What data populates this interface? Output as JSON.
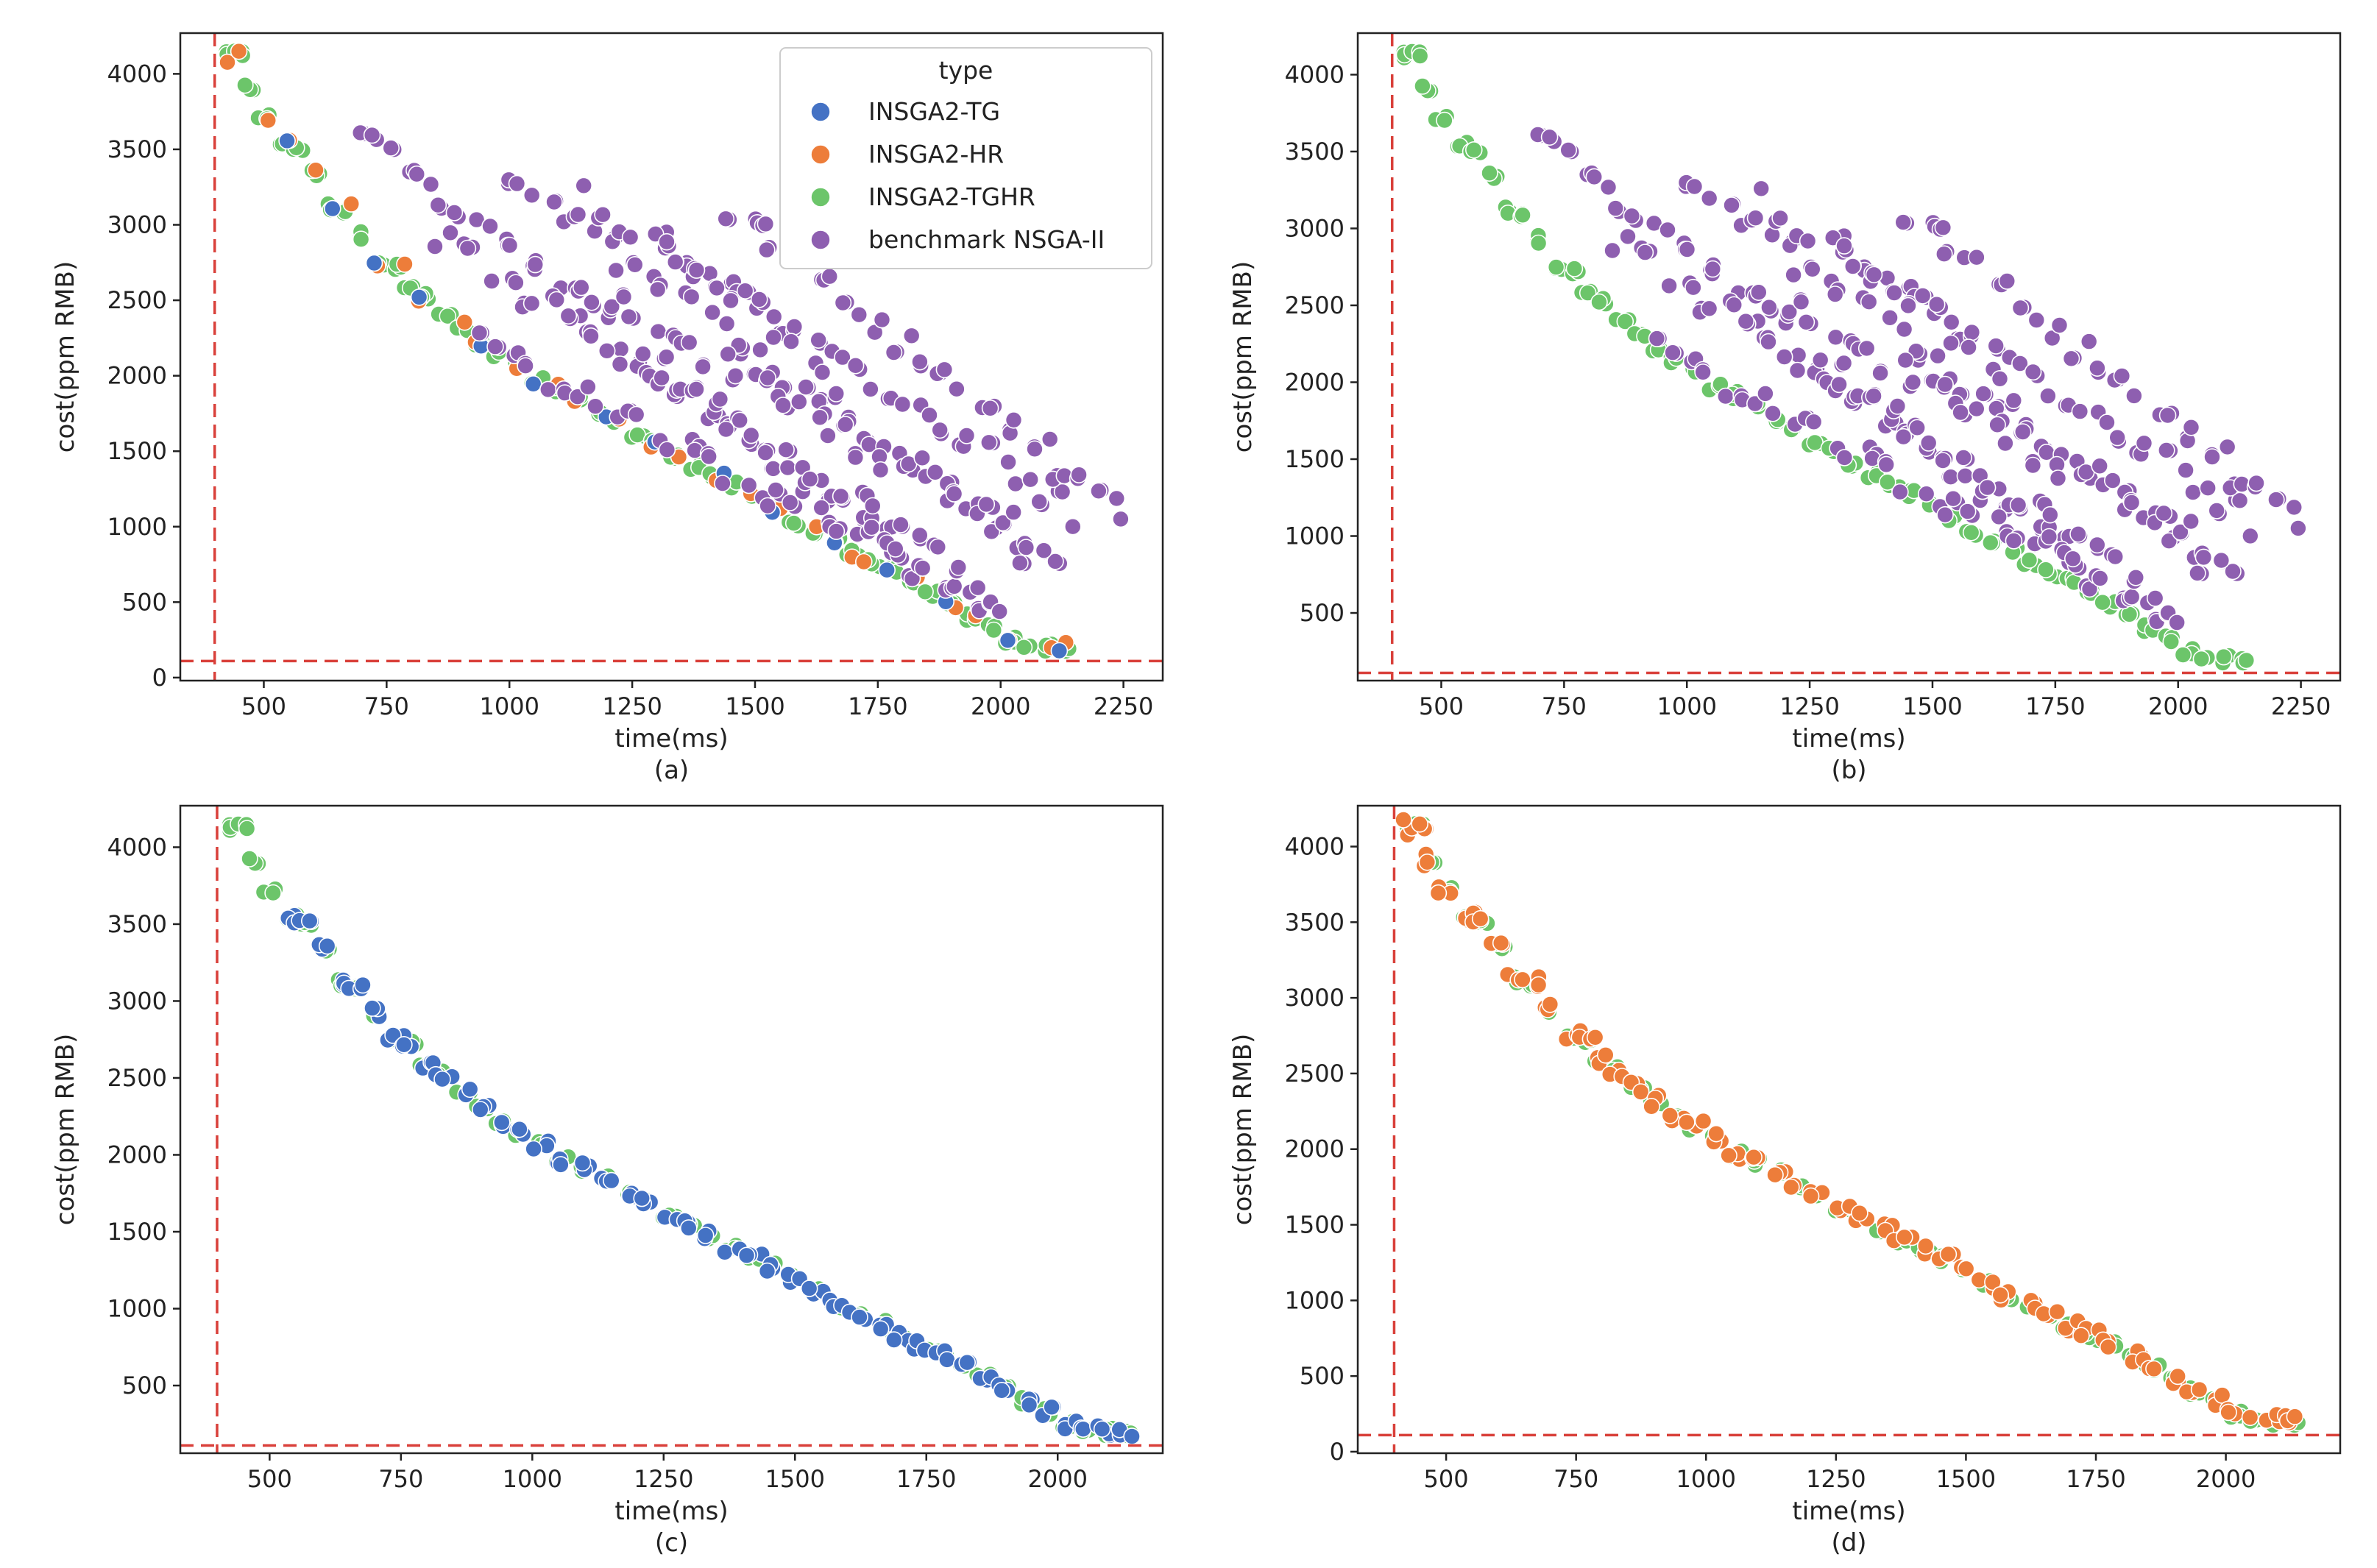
{
  "legend": {
    "title": "type",
    "items": [
      {
        "label": "INSGA2-TG",
        "color": "#4472c4"
      },
      {
        "label": "INSGA2-HR",
        "color": "#ed7d3a"
      },
      {
        "label": "INSGA2-TGHR",
        "color": "#6cc56a"
      },
      {
        "label": "benchmark NSGA-II",
        "color": "#8e5fb0"
      }
    ]
  },
  "chart_data": [
    {
      "id": "a",
      "type": "scatter",
      "caption": "(a)",
      "xlabel": "time(ms)",
      "ylabel": "cost(ppm RMB)",
      "xlim": [
        330,
        2330
      ],
      "ylim": [
        -20,
        4270
      ],
      "xticks": [
        500,
        750,
        1000,
        1250,
        1500,
        1750,
        2000,
        2250
      ],
      "yticks": [
        0,
        500,
        1000,
        1500,
        2000,
        2500,
        3000,
        3500,
        4000
      ],
      "reference_lines": {
        "x": 400,
        "y": 110
      },
      "show_legend": true,
      "series": [
        "INSGA2-TGHR",
        "INSGA2-HR",
        "INSGA2-TG",
        "benchmark NSGA-II"
      ]
    },
    {
      "id": "b",
      "type": "scatter",
      "caption": "(b)",
      "xlabel": "time(ms)",
      "ylabel": "cost(ppm RMB)",
      "xlim": [
        330,
        2330
      ],
      "ylim": [
        60,
        4270
      ],
      "xticks": [
        500,
        750,
        1000,
        1250,
        1500,
        1750,
        2000,
        2250
      ],
      "yticks": [
        500,
        1000,
        1500,
        2000,
        2500,
        3000,
        3500,
        4000
      ],
      "reference_lines": {
        "x": 400,
        "y": 110
      },
      "show_legend": false,
      "series": [
        "INSGA2-TGHR",
        "benchmark NSGA-II"
      ]
    },
    {
      "id": "c",
      "type": "scatter",
      "caption": "(c)",
      "xlabel": "time(ms)",
      "ylabel": "cost(ppm RMB)",
      "xlim": [
        330,
        2200
      ],
      "ylim": [
        60,
        4270
      ],
      "xticks": [
        500,
        750,
        1000,
        1250,
        1500,
        1750,
        2000
      ],
      "yticks": [
        500,
        1000,
        1500,
        2000,
        2500,
        3000,
        3500,
        4000
      ],
      "reference_lines": {
        "x": 400,
        "y": 110
      },
      "show_legend": false,
      "series": [
        "INSGA2-TGHR",
        "INSGA2-TG"
      ]
    },
    {
      "id": "d",
      "type": "scatter",
      "caption": "(d)",
      "xlabel": "time(ms)",
      "ylabel": "cost(ppm RMB)",
      "xlim": [
        330,
        2220
      ],
      "ylim": [
        -10,
        4270
      ],
      "xticks": [
        500,
        750,
        1000,
        1250,
        1500,
        1750,
        2000
      ],
      "yticks": [
        0,
        500,
        1000,
        1500,
        2000,
        2500,
        3000,
        3500,
        4000
      ],
      "reference_lines": {
        "x": 400,
        "y": 110
      },
      "show_legend": false,
      "series": [
        "INSGA2-TGHR",
        "INSGA2-HR"
      ]
    }
  ],
  "point_sets": {
    "front_curve": [
      [
        420,
        4120
      ],
      [
        450,
        4130
      ],
      [
        470,
        3910
      ],
      [
        500,
        3710
      ],
      [
        540,
        3540
      ],
      [
        570,
        3510
      ],
      [
        600,
        3340
      ],
      [
        630,
        3120
      ],
      [
        660,
        3100
      ],
      [
        700,
        2930
      ],
      [
        740,
        2760
      ],
      [
        770,
        2720
      ],
      [
        800,
        2580
      ],
      [
        830,
        2520
      ],
      [
        870,
        2400
      ],
      [
        900,
        2300
      ],
      [
        940,
        2200
      ],
      [
        980,
        2140
      ],
      [
        1020,
        2070
      ],
      [
        1060,
        1960
      ],
      [
        1100,
        1920
      ],
      [
        1140,
        1840
      ],
      [
        1180,
        1760
      ],
      [
        1220,
        1700
      ],
      [
        1260,
        1590
      ],
      [
        1300,
        1550
      ],
      [
        1340,
        1480
      ],
      [
        1380,
        1400
      ],
      [
        1420,
        1330
      ],
      [
        1460,
        1270
      ],
      [
        1500,
        1200
      ],
      [
        1540,
        1120
      ],
      [
        1580,
        1030
      ],
      [
        1620,
        960
      ],
      [
        1660,
        900
      ],
      [
        1700,
        820
      ],
      [
        1740,
        760
      ],
      [
        1780,
        700
      ],
      [
        1820,
        620
      ],
      [
        1860,
        560
      ],
      [
        1900,
        470
      ],
      [
        1940,
        400
      ],
      [
        1980,
        330
      ],
      [
        2020,
        250
      ],
      [
        2060,
        210
      ],
      [
        2100,
        200
      ],
      [
        2130,
        195
      ]
    ],
    "benchmark_bands": [
      {
        "x0": 700,
        "y0": 3580,
        "x1": 1960,
        "y1": 410,
        "n": 46
      },
      {
        "x0": 850,
        "y0": 2950,
        "x1": 2000,
        "y1": 520,
        "n": 40
      },
      {
        "x0": 1000,
        "y0": 3300,
        "x1": 2120,
        "y1": 720,
        "n": 40
      },
      {
        "x0": 1150,
        "y0": 2600,
        "x1": 2080,
        "y1": 900,
        "n": 34
      },
      {
        "x0": 1300,
        "y0": 2900,
        "x1": 2150,
        "y1": 1100,
        "n": 30
      },
      {
        "x0": 1460,
        "y0": 3060,
        "x1": 2250,
        "y1": 1080,
        "n": 30
      },
      {
        "x0": 950,
        "y0": 2200,
        "x1": 1800,
        "y1": 800,
        "n": 30
      },
      {
        "x0": 1150,
        "y0": 3180,
        "x1": 1650,
        "y1": 2100,
        "n": 16
      }
    ]
  }
}
